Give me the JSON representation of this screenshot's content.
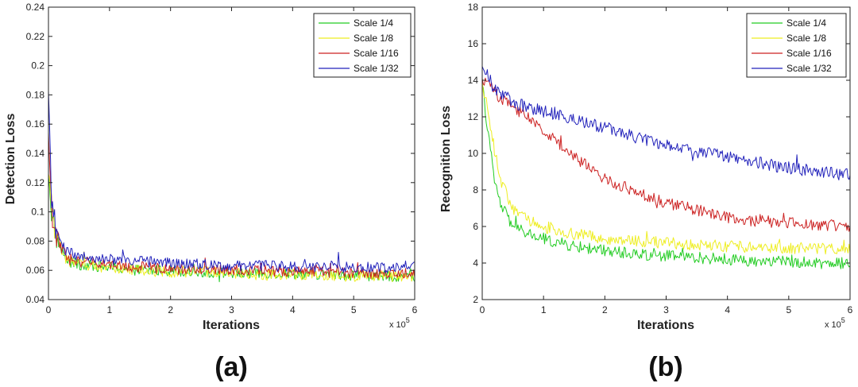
{
  "figure": {
    "panels": [
      {
        "caption": "(a)",
        "x_multiplier": "x 10",
        "x_multiplier_exp": "5"
      },
      {
        "caption": "(b)",
        "x_multiplier": "x 10",
        "x_multiplier_exp": "5"
      }
    ]
  },
  "chart_data": [
    {
      "type": "line",
      "title": "",
      "xlabel": "Iterations",
      "ylabel": "Detection Loss",
      "xlim": [
        0,
        6
      ],
      "ylim": [
        0.04,
        0.24
      ],
      "xticks": [
        0,
        1,
        2,
        3,
        4,
        5,
        6
      ],
      "xtick_labels": [
        "0",
        "1",
        "2",
        "3",
        "4",
        "5",
        "6"
      ],
      "yticks": [
        0.04,
        0.06,
        0.08,
        0.1,
        0.12,
        0.14,
        0.16,
        0.18,
        0.2,
        0.22,
        0.24
      ],
      "ytick_labels": [
        "0.04",
        "0.06",
        "0.08",
        "0.1",
        "0.12",
        "0.14",
        "0.16",
        "0.18",
        "0.2",
        "0.22",
        "0.24"
      ],
      "x_scale_note": "x 10^5",
      "legend_position": "top-right",
      "x": [
        0,
        0.05,
        0.1,
        0.2,
        0.3,
        0.5,
        0.75,
        1,
        1.5,
        2,
        2.5,
        3,
        3.5,
        4,
        4.5,
        5,
        5.5,
        6
      ],
      "series": [
        {
          "name": "Scale 1/4",
          "color": "#22cc22",
          "values": [
            0.13,
            0.1,
            0.088,
            0.075,
            0.066,
            0.064,
            0.063,
            0.062,
            0.06,
            0.06,
            0.059,
            0.058,
            0.058,
            0.058,
            0.057,
            0.057,
            0.056,
            0.056
          ]
        },
        {
          "name": "Scale 1/8",
          "color": "#eeee22",
          "values": [
            0.135,
            0.1,
            0.089,
            0.076,
            0.067,
            0.064,
            0.063,
            0.062,
            0.06,
            0.059,
            0.059,
            0.058,
            0.057,
            0.057,
            0.057,
            0.056,
            0.056,
            0.056
          ]
        },
        {
          "name": "Scale 1/16",
          "color": "#cc2222",
          "values": [
            0.148,
            0.102,
            0.09,
            0.077,
            0.068,
            0.066,
            0.065,
            0.064,
            0.062,
            0.061,
            0.06,
            0.06,
            0.06,
            0.059,
            0.059,
            0.058,
            0.058,
            0.058
          ]
        },
        {
          "name": "Scale 1/32",
          "color": "#2222bb",
          "values": [
            0.18,
            0.105,
            0.093,
            0.08,
            0.072,
            0.07,
            0.069,
            0.068,
            0.066,
            0.065,
            0.064,
            0.063,
            0.063,
            0.063,
            0.062,
            0.062,
            0.062,
            0.062
          ]
        }
      ]
    },
    {
      "type": "line",
      "title": "",
      "xlabel": "Iterations",
      "ylabel": "Recognition Loss",
      "xlim": [
        0,
        6
      ],
      "ylim": [
        2,
        18
      ],
      "xticks": [
        0,
        1,
        2,
        3,
        4,
        5,
        6
      ],
      "xtick_labels": [
        "0",
        "1",
        "2",
        "3",
        "4",
        "5",
        "6"
      ],
      "yticks": [
        2,
        4,
        6,
        8,
        10,
        12,
        14,
        16,
        18
      ],
      "ytick_labels": [
        "2",
        "4",
        "6",
        "8",
        "10",
        "12",
        "14",
        "16",
        "18"
      ],
      "x_scale_note": "x 10^5",
      "legend_position": "top-right",
      "x": [
        0,
        0.1,
        0.2,
        0.3,
        0.5,
        0.75,
        1,
        1.5,
        2,
        2.5,
        3,
        3.5,
        4,
        4.5,
        5,
        5.5,
        6
      ],
      "series": [
        {
          "name": "Scale 1/4",
          "color": "#22cc22",
          "values": [
            13.8,
            11.0,
            8.5,
            7.2,
            6.0,
            5.6,
            5.3,
            4.9,
            4.7,
            4.5,
            4.4,
            4.3,
            4.2,
            4.1,
            4.1,
            4.0,
            4.0
          ]
        },
        {
          "name": "Scale 1/8",
          "color": "#eeee22",
          "values": [
            13.9,
            12.3,
            10.2,
            8.5,
            7.0,
            6.3,
            6.0,
            5.6,
            5.3,
            5.2,
            5.1,
            5.0,
            4.9,
            4.9,
            4.8,
            4.8,
            4.8
          ]
        },
        {
          "name": "Scale 1/16",
          "color": "#cc2222",
          "values": [
            14.0,
            13.8,
            13.4,
            13.0,
            12.5,
            12.0,
            11.3,
            9.8,
            8.6,
            7.9,
            7.3,
            6.9,
            6.5,
            6.3,
            6.2,
            6.1,
            6.0
          ]
        },
        {
          "name": "Scale 1/32",
          "color": "#2222bb",
          "values": [
            14.8,
            14.2,
            13.5,
            13.2,
            12.8,
            12.5,
            12.3,
            11.8,
            11.4,
            10.9,
            10.5,
            10.1,
            9.8,
            9.5,
            9.2,
            9.0,
            8.8
          ]
        }
      ]
    }
  ]
}
